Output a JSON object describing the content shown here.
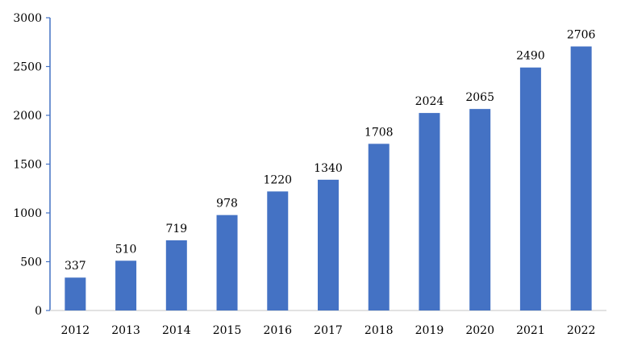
{
  "chart_data": {
    "type": "bar",
    "categories": [
      "2012",
      "2013",
      "2014",
      "2015",
      "2016",
      "2017",
      "2018",
      "2019",
      "2020",
      "2021",
      "2022"
    ],
    "values": [
      337,
      510,
      719,
      978,
      1220,
      1340,
      1708,
      2024,
      2065,
      2490,
      2706
    ],
    "title": "",
    "xlabel": "",
    "ylabel": "",
    "ylim": [
      0,
      3000
    ],
    "yticks": [
      "0",
      "500",
      "1000",
      "1500",
      "2000",
      "2500",
      "3000"
    ],
    "grid": false,
    "legend": "none",
    "colors": {
      "bar": "#4472C4",
      "axis": "#4472C4",
      "text": "#000000"
    }
  }
}
